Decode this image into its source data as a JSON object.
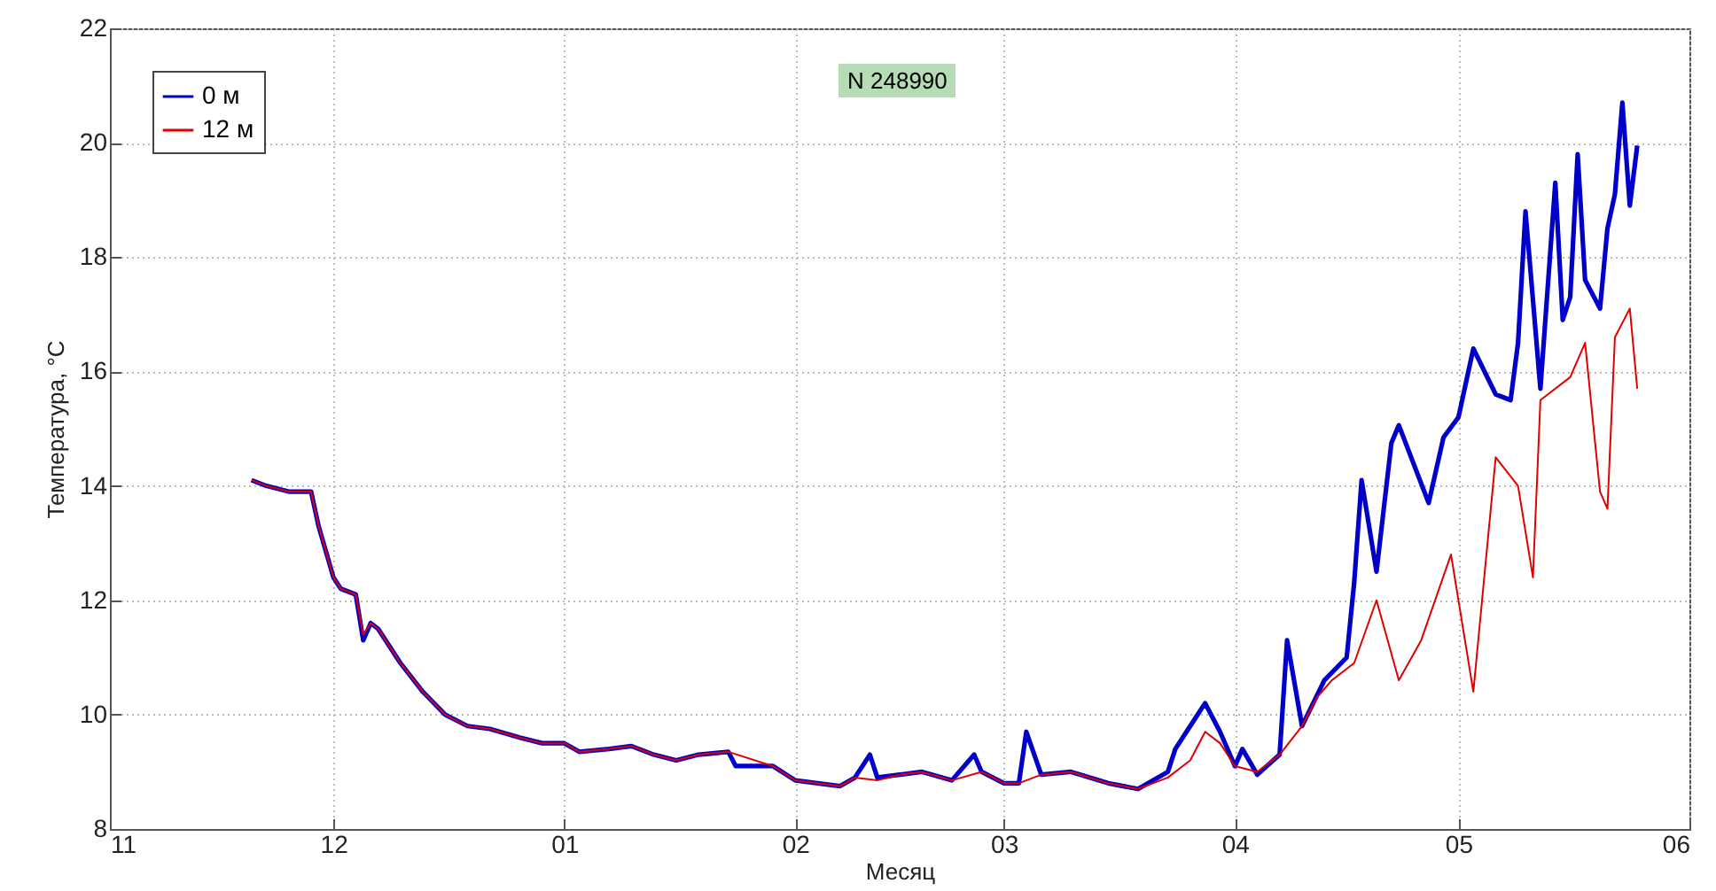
{
  "chart_data": {
    "type": "line",
    "xlabel": "Месяц",
    "ylabel": "Температура, °C",
    "annotations": [
      "N 248990"
    ],
    "xlim": [
      "2010-11-01",
      "2011-06-01"
    ],
    "xticks": [
      {
        "value": "2010-11-01",
        "label": "11"
      },
      {
        "value": "2010-12-01",
        "label": "12"
      },
      {
        "value": "2011-01-01",
        "label": "01"
      },
      {
        "value": "2011-02-01",
        "label": "02"
      },
      {
        "value": "2011-03-01",
        "label": "03"
      },
      {
        "value": "2011-04-01",
        "label": "04"
      },
      {
        "value": "2011-05-01",
        "label": "05"
      },
      {
        "value": "2011-06-01",
        "label": "06"
      }
    ],
    "ylim": [
      8,
      22
    ],
    "yticks": [
      8,
      10,
      12,
      14,
      16,
      18,
      20,
      22
    ],
    "grid": true,
    "legend": "top left",
    "series": [
      {
        "name": "0 м",
        "color": "#0000c8",
        "x": [
          "2010-11-20",
          "2010-11-22",
          "2010-11-25",
          "2010-11-28",
          "2010-11-29",
          "2010-12-01",
          "2010-12-02",
          "2010-12-04",
          "2010-12-05",
          "2010-12-06",
          "2010-12-07",
          "2010-12-10",
          "2010-12-13",
          "2010-12-16",
          "2010-12-19",
          "2010-12-22",
          "2010-12-26",
          "2010-12-29",
          "2011-01-01",
          "2011-01-03",
          "2011-01-07",
          "2011-01-10",
          "2011-01-13",
          "2011-01-16",
          "2011-01-19",
          "2011-01-23",
          "2011-01-24",
          "2011-01-29",
          "2011-02-01",
          "2011-02-04",
          "2011-02-07",
          "2011-02-09",
          "2011-02-11",
          "2011-02-12",
          "2011-02-15",
          "2011-02-18",
          "2011-02-22",
          "2011-02-25",
          "2011-02-26",
          "2011-03-01",
          "2011-03-03",
          "2011-03-04",
          "2011-03-06",
          "2011-03-10",
          "2011-03-15",
          "2011-03-19",
          "2011-03-23",
          "2011-03-24",
          "2011-03-26",
          "2011-03-28",
          "2011-03-30",
          "2011-04-01",
          "2011-04-02",
          "2011-04-04",
          "2011-04-07",
          "2011-04-08",
          "2011-04-10",
          "2011-04-13",
          "2011-04-16",
          "2011-04-17",
          "2011-04-18",
          "2011-04-20",
          "2011-04-22",
          "2011-04-23",
          "2011-04-27",
          "2011-04-29",
          "2011-05-01",
          "2011-05-03",
          "2011-05-06",
          "2011-05-08",
          "2011-05-09",
          "2011-05-10",
          "2011-05-12",
          "2011-05-14",
          "2011-05-15",
          "2011-05-16",
          "2011-05-17",
          "2011-05-18",
          "2011-05-20",
          "2011-05-21",
          "2011-05-22",
          "2011-05-23",
          "2011-05-24",
          "2011-05-25"
        ],
        "values": [
          14.1,
          14.0,
          13.9,
          13.9,
          13.3,
          12.4,
          12.2,
          12.1,
          11.3,
          11.6,
          11.5,
          10.9,
          10.4,
          10.0,
          9.8,
          9.75,
          9.6,
          9.5,
          9.5,
          9.35,
          9.4,
          9.45,
          9.3,
          9.2,
          9.3,
          9.35,
          9.1,
          9.1,
          8.85,
          8.8,
          8.75,
          8.9,
          9.3,
          8.9,
          8.95,
          9.0,
          8.85,
          9.3,
          9.0,
          8.8,
          8.8,
          9.7,
          8.95,
          9.0,
          8.8,
          8.7,
          9.0,
          9.4,
          9.8,
          10.2,
          9.7,
          9.1,
          9.4,
          8.95,
          9.3,
          11.3,
          9.8,
          10.6,
          11.0,
          12.3,
          14.1,
          12.5,
          14.75,
          15.06,
          13.7,
          14.85,
          15.2,
          16.4,
          15.6,
          15.5,
          16.5,
          18.8,
          15.7,
          19.3,
          16.9,
          17.3,
          19.8,
          17.6,
          17.1,
          18.5,
          19.1,
          20.7,
          18.9,
          19.95
        ]
      },
      {
        "name": "12 м",
        "color": "#e00000",
        "x": [
          "2010-11-20",
          "2010-11-22",
          "2010-11-25",
          "2010-11-28",
          "2010-11-29",
          "2010-12-01",
          "2010-12-02",
          "2010-12-04",
          "2010-12-05",
          "2010-12-06",
          "2010-12-07",
          "2010-12-10",
          "2010-12-13",
          "2010-12-16",
          "2010-12-19",
          "2010-12-22",
          "2010-12-26",
          "2010-12-29",
          "2011-01-01",
          "2011-01-03",
          "2011-01-07",
          "2011-01-10",
          "2011-01-13",
          "2011-01-16",
          "2011-01-19",
          "2011-01-23",
          "2011-01-29",
          "2011-02-01",
          "2011-02-04",
          "2011-02-07",
          "2011-02-09",
          "2011-02-12",
          "2011-02-15",
          "2011-02-18",
          "2011-02-22",
          "2011-02-26",
          "2011-03-01",
          "2011-03-03",
          "2011-03-06",
          "2011-03-10",
          "2011-03-15",
          "2011-03-19",
          "2011-03-23",
          "2011-03-26",
          "2011-03-28",
          "2011-03-30",
          "2011-04-01",
          "2011-04-04",
          "2011-04-07",
          "2011-04-10",
          "2011-04-12",
          "2011-04-14",
          "2011-04-17",
          "2011-04-20",
          "2011-04-23",
          "2011-04-26",
          "2011-04-30",
          "2011-05-03",
          "2011-05-06",
          "2011-05-09",
          "2011-05-11",
          "2011-05-12",
          "2011-05-16",
          "2011-05-18",
          "2011-05-20",
          "2011-05-21",
          "2011-05-22",
          "2011-05-24",
          "2011-05-25"
        ],
        "values": [
          14.1,
          14.0,
          13.9,
          13.9,
          13.3,
          12.4,
          12.2,
          12.1,
          11.4,
          11.6,
          11.5,
          10.9,
          10.4,
          10.0,
          9.8,
          9.75,
          9.6,
          9.5,
          9.5,
          9.35,
          9.4,
          9.45,
          9.3,
          9.2,
          9.3,
          9.35,
          9.1,
          8.85,
          8.8,
          8.75,
          8.9,
          8.85,
          8.95,
          9.0,
          8.85,
          9.0,
          8.8,
          8.8,
          8.95,
          9.0,
          8.8,
          8.7,
          8.9,
          9.2,
          9.7,
          9.5,
          9.1,
          9.0,
          9.3,
          9.8,
          10.3,
          10.6,
          10.9,
          12.0,
          10.6,
          11.3,
          12.8,
          10.4,
          14.5,
          14.0,
          12.4,
          15.5,
          15.9,
          16.5,
          13.9,
          13.6,
          16.6,
          17.1,
          15.7
        ]
      }
    ]
  }
}
